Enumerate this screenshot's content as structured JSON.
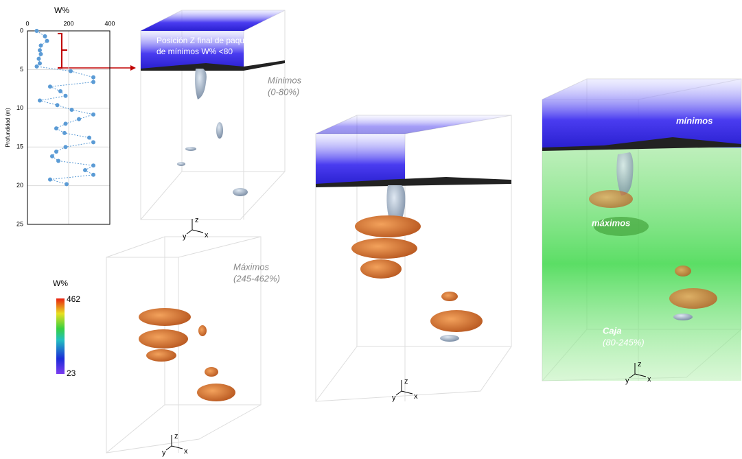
{
  "chart_data": {
    "type": "line",
    "x_label": "W%",
    "y_label": "Profundidad (m)",
    "color": "#5b9bd5",
    "x": [
      45,
      85,
      95,
      65,
      60,
      65,
      55,
      60,
      45,
      210,
      320,
      320,
      110,
      160,
      185,
      60,
      145,
      215,
      320,
      250,
      185,
      140,
      180,
      300,
      320,
      185,
      140,
      120,
      150,
      320,
      280,
      320,
      110,
      190
    ],
    "values": [
      0,
      0.7,
      1.3,
      1.9,
      2.5,
      3.0,
      3.6,
      4.2,
      4.6,
      5.2,
      6.0,
      6.6,
      7.2,
      7.8,
      8.4,
      9.0,
      9.6,
      10.2,
      10.8,
      11.4,
      12.0,
      12.6,
      13.2,
      13.8,
      14.4,
      15.0,
      15.6,
      16.2,
      16.8,
      17.4,
      18.0,
      18.6,
      19.2,
      19.8
    ],
    "xlim": [
      0,
      400
    ],
    "xticks": [
      0,
      200,
      400
    ],
    "ylim": [
      0,
      25
    ],
    "yticks": [
      0,
      5,
      10,
      15,
      20,
      25
    ],
    "y_inverted": true,
    "grid": true
  },
  "annotations": {
    "final_z_line1": "Posición Z final de paquete",
    "final_z_line2": "de mínimos W% <80",
    "minimos_title": "Mínimos",
    "minimos_range": "(0-80%)",
    "maximos_title": "Máximos",
    "maximos_range": "(245-462%)",
    "minimos_small": "mínimos",
    "maximos_small": "máximos",
    "caja_title": "Caja",
    "caja_range": "(80-245%)"
  },
  "colorbar": {
    "title": "W%",
    "max": 462,
    "min": 23
  },
  "axes_triad": {
    "z": "z",
    "y": "y",
    "x": "x"
  }
}
